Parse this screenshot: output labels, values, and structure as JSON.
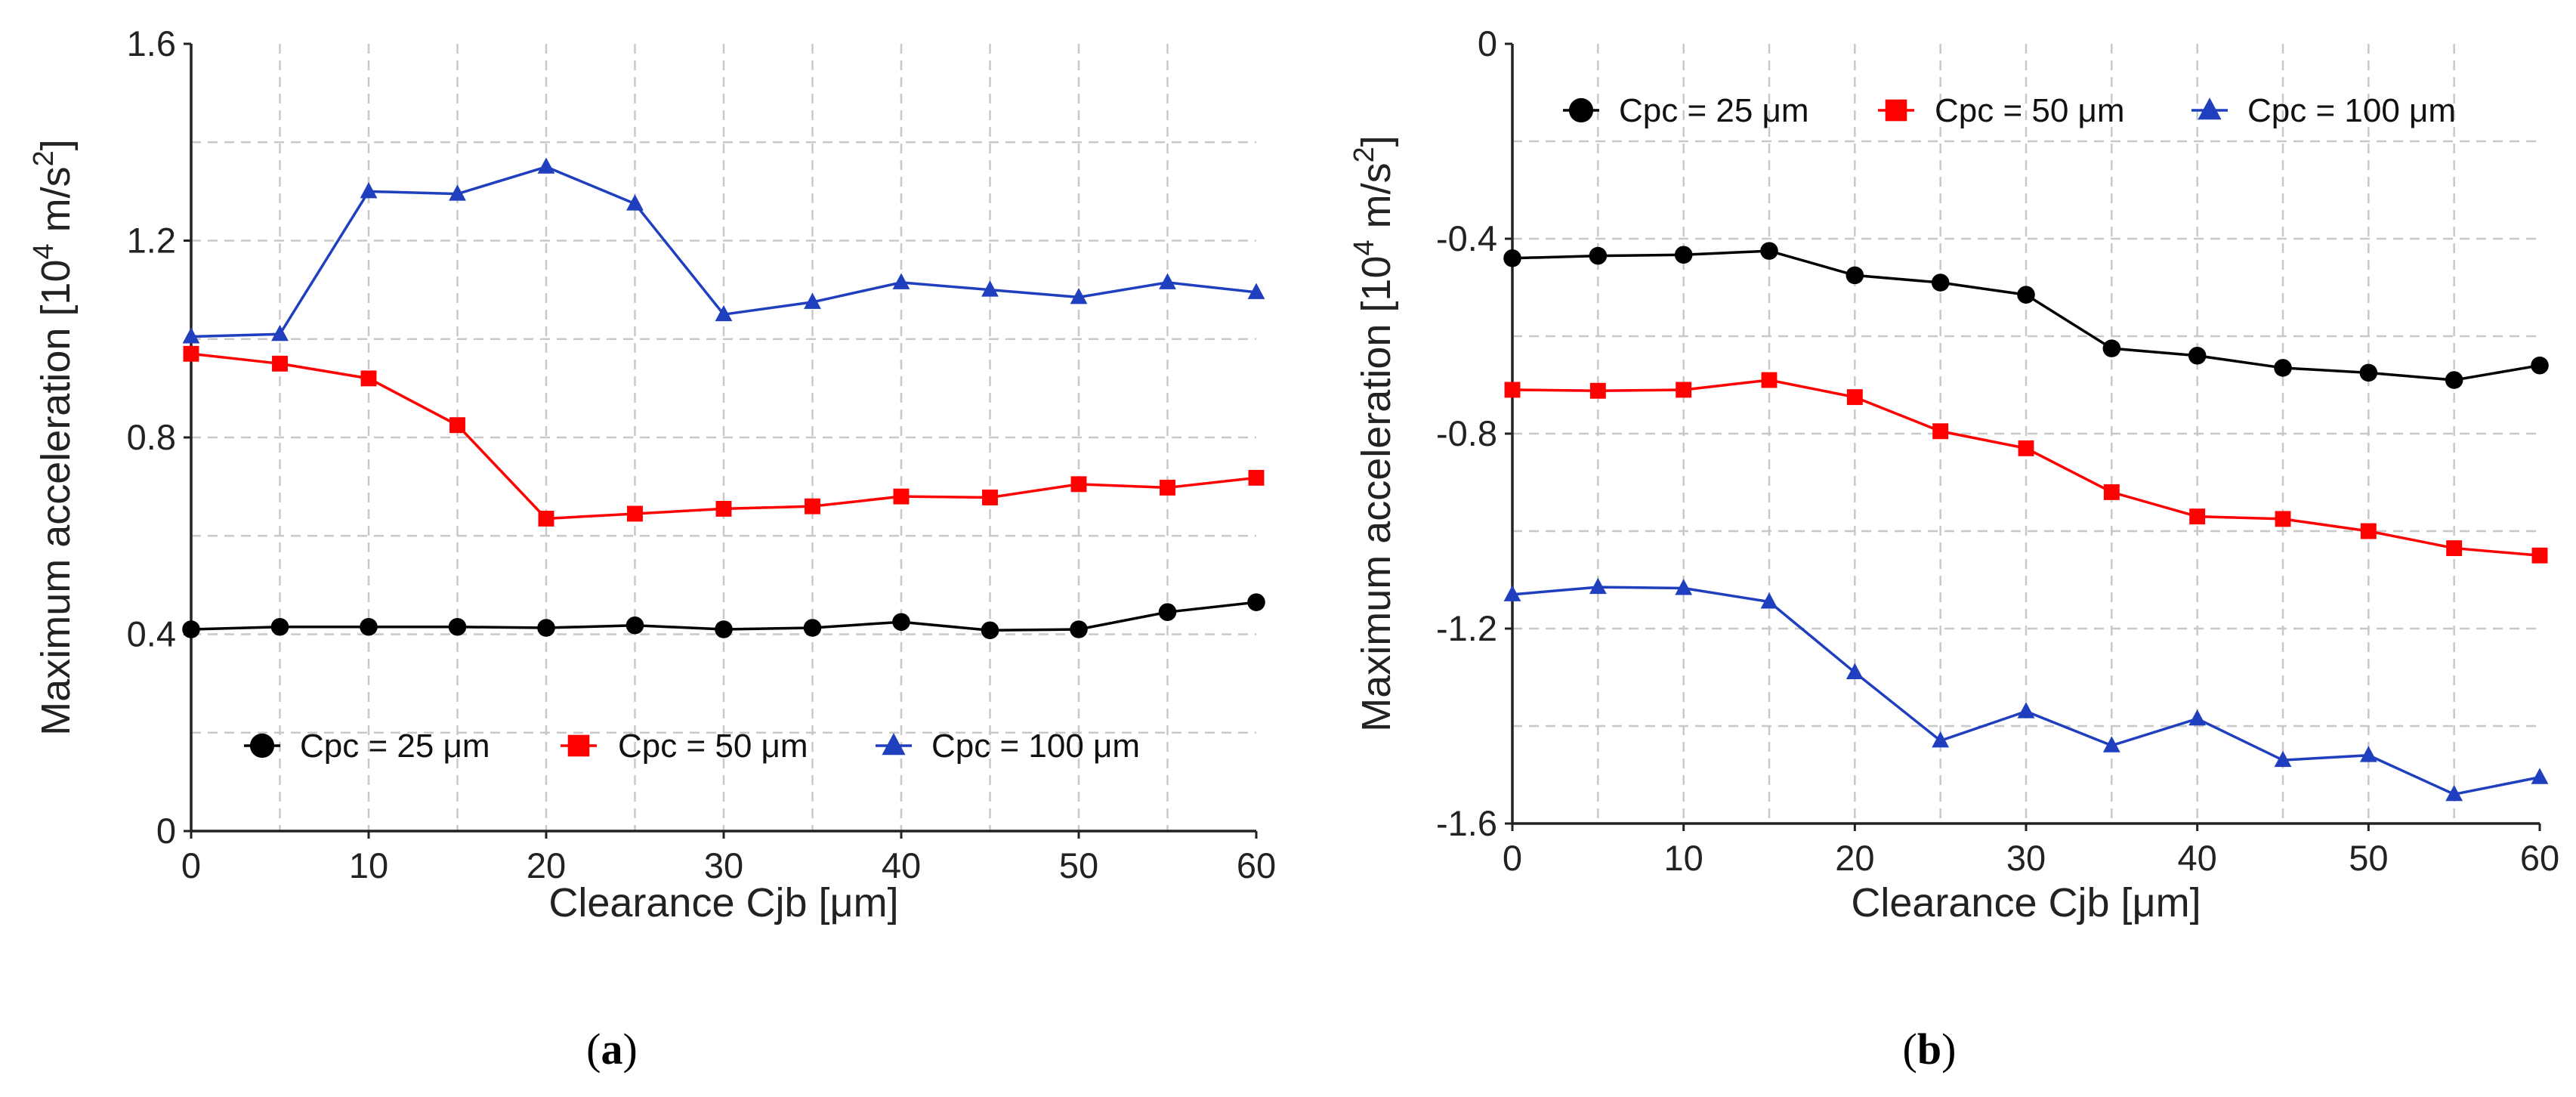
{
  "chart_data": [
    {
      "type": "line",
      "panel_label": "a",
      "xlabel": "Clearance Cjb [μm]",
      "ylabel_main": "Maximum acceleration [10",
      "ylabel_exp": "4",
      "ylabel_unit": " m/s",
      "ylabel_unit_exp": "2",
      "ylabel_close": "]",
      "xlim": [
        0,
        60
      ],
      "ylim": [
        0,
        1.6
      ],
      "xticks": [
        0,
        10,
        20,
        30,
        40,
        50,
        60
      ],
      "xtick_labels": [
        "0",
        "10",
        "20",
        "30",
        "40",
        "50",
        "60"
      ],
      "yticks": [
        0,
        0.4,
        0.8,
        1.2,
        1.6
      ],
      "ytick_labels": [
        "0",
        "0.4",
        "0.8",
        "1.2",
        "1.6"
      ],
      "x": [
        0,
        5,
        10,
        15,
        20,
        25,
        30,
        35,
        40,
        45,
        50,
        55,
        60
      ],
      "grid": true,
      "legend_position": "bottom",
      "series": [
        {
          "name": "Cpc = 25 μm",
          "color": "#000000",
          "marker": "circle",
          "values": [
            0.41,
            0.415,
            0.415,
            0.415,
            0.413,
            0.418,
            0.41,
            0.413,
            0.425,
            0.408,
            0.41,
            0.445,
            0.465
          ]
        },
        {
          "name": "Cpc = 50 μm",
          "color": "#ff0000",
          "marker": "square",
          "values": [
            0.97,
            0.95,
            0.92,
            0.825,
            0.635,
            0.645,
            0.655,
            0.66,
            0.68,
            0.678,
            0.705,
            0.698,
            0.718
          ]
        },
        {
          "name": "Cpc = 100 μm",
          "color": "#1f3fbf",
          "marker": "triangle",
          "values": [
            1.005,
            1.01,
            1.3,
            1.295,
            1.35,
            1.275,
            1.05,
            1.075,
            1.115,
            1.1,
            1.085,
            1.115,
            1.095
          ]
        }
      ]
    },
    {
      "type": "line",
      "panel_label": "b",
      "xlabel": "Clearance Cjb [μm]",
      "ylabel_main": "Maximum acceleration [10",
      "ylabel_exp": "4",
      "ylabel_unit": " m/s",
      "ylabel_unit_exp": "2",
      "ylabel_close": "]",
      "xlim": [
        0,
        60
      ],
      "ylim": [
        -1.6,
        0
      ],
      "xticks": [
        0,
        10,
        20,
        30,
        40,
        50,
        60
      ],
      "xtick_labels": [
        "0",
        "10",
        "20",
        "30",
        "40",
        "50",
        "60"
      ],
      "yticks": [
        -1.6,
        -1.2,
        -0.8,
        -0.4,
        0
      ],
      "ytick_labels": [
        "-1.6",
        "-1.2",
        "-0.8",
        "-0.4",
        "0"
      ],
      "x": [
        0,
        5,
        10,
        15,
        20,
        25,
        30,
        35,
        40,
        45,
        50,
        55,
        60
      ],
      "grid": true,
      "legend_position": "top",
      "series": [
        {
          "name": "Cpc = 25 μm",
          "color": "#000000",
          "marker": "circle",
          "values": [
            -0.44,
            -0.435,
            -0.433,
            -0.425,
            -0.475,
            -0.49,
            -0.515,
            -0.625,
            -0.64,
            -0.665,
            -0.675,
            -0.69,
            -0.66
          ]
        },
        {
          "name": "Cpc = 50 μm",
          "color": "#ff0000",
          "marker": "square",
          "values": [
            -0.71,
            -0.712,
            -0.71,
            -0.69,
            -0.725,
            -0.795,
            -0.83,
            -0.92,
            -0.97,
            -0.975,
            -1.0,
            -1.035,
            -1.05
          ]
        },
        {
          "name": "Cpc = 100 μm",
          "color": "#1f3fbf",
          "marker": "triangle",
          "values": [
            -1.13,
            -1.115,
            -1.117,
            -1.145,
            -1.29,
            -1.43,
            -1.37,
            -1.44,
            -1.385,
            -1.47,
            -1.46,
            -1.54,
            -1.505
          ]
        }
      ]
    }
  ]
}
